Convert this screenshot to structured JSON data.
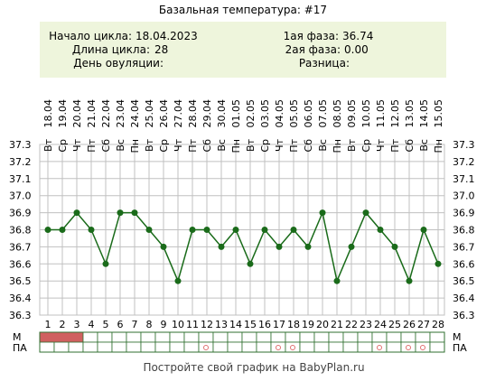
{
  "header": {
    "title": "Базальная температура: #17",
    "cycle_start_label": "Начало цикла:",
    "cycle_start_value": "18.04.2023",
    "cycle_length_label": "Длина цикла:",
    "cycle_length_value": "28",
    "ovulation_label": "День овуляции:",
    "ovulation_value": "",
    "phase1_label": "1ая фаза:",
    "phase1_value": "36.74",
    "phase2_label": "2ая фаза:",
    "phase2_value": "0.00",
    "diff_label": "Разница:",
    "diff_value": ""
  },
  "footer": {
    "link_text": "Постройте свой график на BabyPlan.ru"
  },
  "row_labels": {
    "m": "М",
    "pa": "ПА"
  },
  "colors": {
    "header_bg": "#eef5dc",
    "line": "#1a6b1a",
    "point": "#1a6b1a",
    "menses": "#d06060",
    "pa_marker": "#e07070",
    "grid": "#c0c0c0",
    "border": "#2f6f2f"
  },
  "chart_data": {
    "type": "line",
    "title": "Базальная температура: #17",
    "y_ticks": [
      "36.3",
      "36.4",
      "36.5",
      "36.6",
      "36.7",
      "36.8",
      "36.9",
      "37.0",
      "37.1",
      "37.2",
      "37.3"
    ],
    "ylim": [
      36.3,
      37.3
    ],
    "grid": true,
    "dates": [
      "18.04",
      "19.04",
      "20.04",
      "21.04",
      "22.04",
      "23.04",
      "24.04",
      "25.04",
      "26.04",
      "27.04",
      "28.04",
      "29.04",
      "30.04",
      "01.05",
      "02.05",
      "03.05",
      "04.05",
      "05.05",
      "06.05",
      "07.05",
      "08.05",
      "09.05",
      "10.05",
      "11.05",
      "12.05",
      "13.05",
      "14.05",
      "15.05"
    ],
    "weekdays": [
      "Вт",
      "Ср",
      "Чт",
      "Пт",
      "Сб",
      "Вс",
      "Пн",
      "Вт",
      "Ср",
      "Чт",
      "Пт",
      "Сб",
      "Вс",
      "Пн",
      "Вт",
      "Ср",
      "Чт",
      "Пт",
      "Сб",
      "Вс",
      "Пн",
      "Вт",
      "Ср",
      "Чт",
      "Пт",
      "Сб",
      "Вс",
      "Пн"
    ],
    "days": [
      "1",
      "2",
      "3",
      "4",
      "5",
      "6",
      "7",
      "8",
      "9",
      "10",
      "11",
      "12",
      "13",
      "14",
      "15",
      "16",
      "17",
      "18",
      "19",
      "20",
      "21",
      "22",
      "23",
      "24",
      "25",
      "26",
      "27",
      "28"
    ],
    "values": [
      36.8,
      36.8,
      36.9,
      36.8,
      36.6,
      36.9,
      36.9,
      36.8,
      36.7,
      36.5,
      36.8,
      36.8,
      36.7,
      36.8,
      36.6,
      36.8,
      36.7,
      36.8,
      36.7,
      36.9,
      36.5,
      36.7,
      36.9,
      36.8,
      36.7,
      36.5,
      36.8,
      36.6
    ],
    "menses_days": [
      1,
      2,
      3
    ],
    "pa_days": [
      12,
      17,
      18,
      24,
      26,
      27
    ]
  }
}
